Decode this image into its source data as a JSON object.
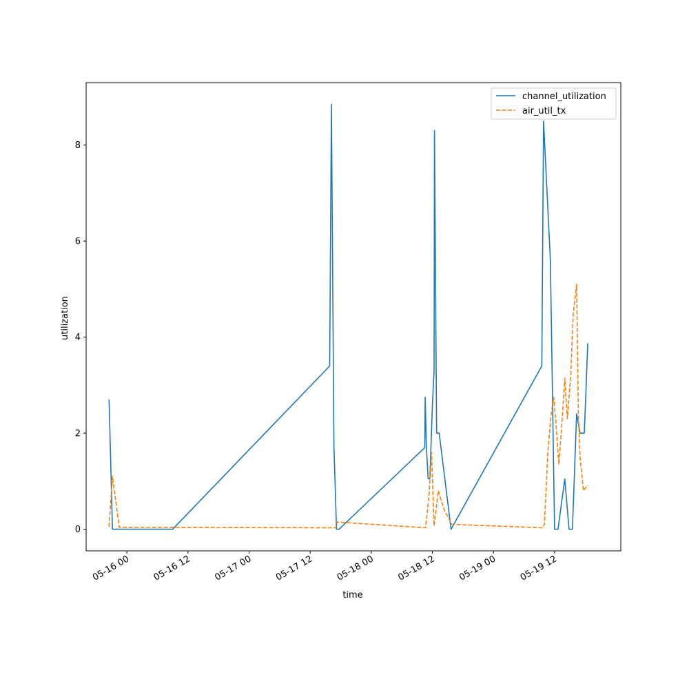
{
  "chart_data": {
    "type": "line",
    "title": "",
    "xlabel": "time",
    "ylabel": "utilization",
    "x_range": [
      "2025-05-15 16:00",
      "2025-05-20 01:00"
    ],
    "ylim": [
      -0.45,
      9.3
    ],
    "x_ticks": [
      {
        "t": "2025-05-16 00:00",
        "label": "05-16 00"
      },
      {
        "t": "2025-05-16 12:00",
        "label": "05-16 12"
      },
      {
        "t": "2025-05-17 00:00",
        "label": "05-17 00"
      },
      {
        "t": "2025-05-17 12:00",
        "label": "05-17 12"
      },
      {
        "t": "2025-05-18 00:00",
        "label": "05-18 00"
      },
      {
        "t": "2025-05-18 12:00",
        "label": "05-18 12"
      },
      {
        "t": "2025-05-19 00:00",
        "label": "05-19 00"
      },
      {
        "t": "2025-05-19 12:00",
        "label": "05-19 12"
      }
    ],
    "y_ticks": [
      0,
      2,
      4,
      6,
      8
    ],
    "grid": false,
    "legend_position": "top-right",
    "series": [
      {
        "name": "channel_utilization",
        "color": "#1f77b4",
        "style": "solid",
        "points": [
          [
            "2025-05-15 20:30",
            2.7
          ],
          [
            "2025-05-15 21:10",
            0.0
          ],
          [
            "2025-05-16 09:00",
            0.0
          ],
          [
            "2025-05-16 09:10",
            0.02
          ],
          [
            "2025-05-17 15:50",
            3.4
          ],
          [
            "2025-05-17 16:10",
            8.85
          ],
          [
            "2025-05-17 16:40",
            1.7
          ],
          [
            "2025-05-17 17:10",
            0.0
          ],
          [
            "2025-05-17 17:40",
            0.0
          ],
          [
            "2025-05-18 10:30",
            1.7
          ],
          [
            "2025-05-18 10:35",
            2.75
          ],
          [
            "2025-05-18 10:50",
            1.7
          ],
          [
            "2025-05-18 11:10",
            1.05
          ],
          [
            "2025-05-18 11:30",
            1.05
          ],
          [
            "2025-05-18 12:00",
            2.6
          ],
          [
            "2025-05-18 12:20",
            3.3
          ],
          [
            "2025-05-18 12:25",
            8.3
          ],
          [
            "2025-05-18 12:50",
            2.0
          ],
          [
            "2025-05-18 13:20",
            2.0
          ],
          [
            "2025-05-18 15:40",
            0.0
          ],
          [
            "2025-05-19 09:30",
            3.4
          ],
          [
            "2025-05-19 09:50",
            8.5
          ],
          [
            "2025-05-19 11:10",
            5.6
          ],
          [
            "2025-05-19 12:00",
            0.0
          ],
          [
            "2025-05-19 12:40",
            0.0
          ],
          [
            "2025-05-19 14:00",
            1.05
          ],
          [
            "2025-05-19 14:50",
            0.0
          ],
          [
            "2025-05-19 15:30",
            0.0
          ],
          [
            "2025-05-19 16:20",
            2.4
          ],
          [
            "2025-05-19 17:00",
            2.0
          ],
          [
            "2025-05-19 17:50",
            2.0
          ],
          [
            "2025-05-19 18:10",
            2.9
          ],
          [
            "2025-05-19 18:30",
            3.87
          ]
        ]
      },
      {
        "name": "air_util_tx",
        "color": "#ff7f0e",
        "style": "dashed",
        "points": [
          [
            "2025-05-15 20:30",
            0.05
          ],
          [
            "2025-05-15 21:10",
            1.1
          ],
          [
            "2025-05-15 22:30",
            0.04
          ],
          [
            "2025-05-17 17:00",
            0.03
          ],
          [
            "2025-05-17 17:20",
            0.15
          ],
          [
            "2025-05-18 10:40",
            0.03
          ],
          [
            "2025-05-18 11:20",
            0.7
          ],
          [
            "2025-05-18 11:50",
            1.6
          ],
          [
            "2025-05-18 12:20",
            0.07
          ],
          [
            "2025-05-18 13:10",
            0.8
          ],
          [
            "2025-05-18 14:20",
            0.4
          ],
          [
            "2025-05-18 15:50",
            0.1
          ],
          [
            "2025-05-19 09:40",
            0.03
          ],
          [
            "2025-05-19 10:00",
            0.1
          ],
          [
            "2025-05-19 10:40",
            1.6
          ],
          [
            "2025-05-19 11:20",
            2.4
          ],
          [
            "2025-05-19 11:50",
            2.75
          ],
          [
            "2025-05-19 12:20",
            2.1
          ],
          [
            "2025-05-19 12:50",
            1.35
          ],
          [
            "2025-05-19 13:30",
            2.3
          ],
          [
            "2025-05-19 14:00",
            3.15
          ],
          [
            "2025-05-19 14:30",
            2.3
          ],
          [
            "2025-05-19 15:10",
            3.2
          ],
          [
            "2025-05-19 15:40",
            4.5
          ],
          [
            "2025-05-19 16:20",
            5.1
          ],
          [
            "2025-05-19 16:40",
            2.4
          ],
          [
            "2025-05-19 17:00",
            1.5
          ],
          [
            "2025-05-19 17:40",
            0.8
          ],
          [
            "2025-05-19 18:00",
            0.85
          ],
          [
            "2025-05-19 18:30",
            0.92
          ]
        ]
      }
    ]
  }
}
